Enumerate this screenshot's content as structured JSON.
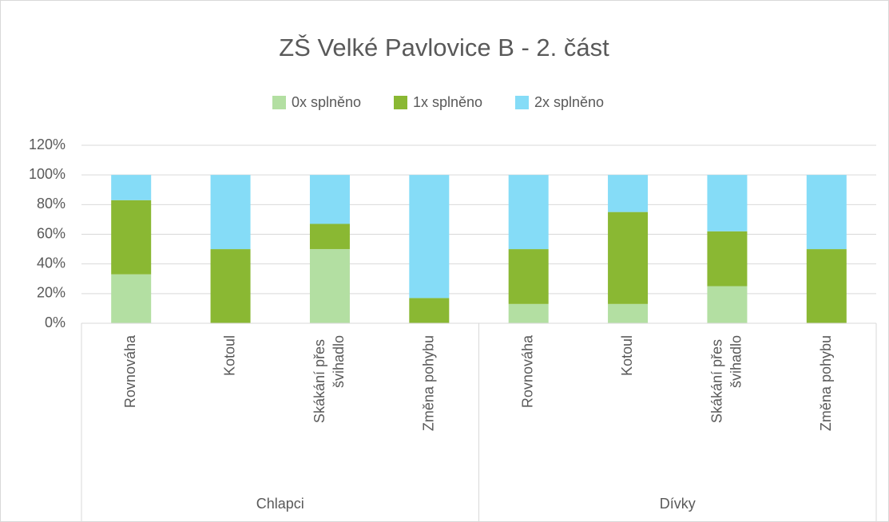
{
  "chart_data": {
    "type": "stacked_bar",
    "title": "ZŠ Velké Pavlovice B - 2. část",
    "groups": [
      "Chlapci",
      "Dívky"
    ],
    "categories": [
      "Rovnováha",
      "Kotoul",
      "Skákání přes švihadlo",
      "Změna pohybu",
      "Rovnováha",
      "Kotoul",
      "Skákání přes švihadlo",
      "Změna pohybu"
    ],
    "series": [
      {
        "name": "0x splněno",
        "color": "#b3dfa2",
        "values": [
          33,
          0,
          50,
          0,
          13,
          13,
          25,
          0
        ]
      },
      {
        "name": "1x splněno",
        "color": "#8ab833",
        "values": [
          50,
          50,
          17,
          17,
          37,
          62,
          37,
          50
        ]
      },
      {
        "name": "2x splněno",
        "color": "#85dcf7",
        "values": [
          17,
          50,
          33,
          83,
          50,
          25,
          38,
          50
        ]
      }
    ],
    "ylim": [
      0,
      120
    ],
    "yticks": [
      {
        "value": 0,
        "label": "0%"
      },
      {
        "value": 20,
        "label": "20%"
      },
      {
        "value": 40,
        "label": "40%"
      },
      {
        "value": 60,
        "label": "60%"
      },
      {
        "value": 80,
        "label": "80%"
      },
      {
        "value": 100,
        "label": "100%"
      },
      {
        "value": 120,
        "label": "120%"
      }
    ],
    "grid": true,
    "legend": "top"
  }
}
